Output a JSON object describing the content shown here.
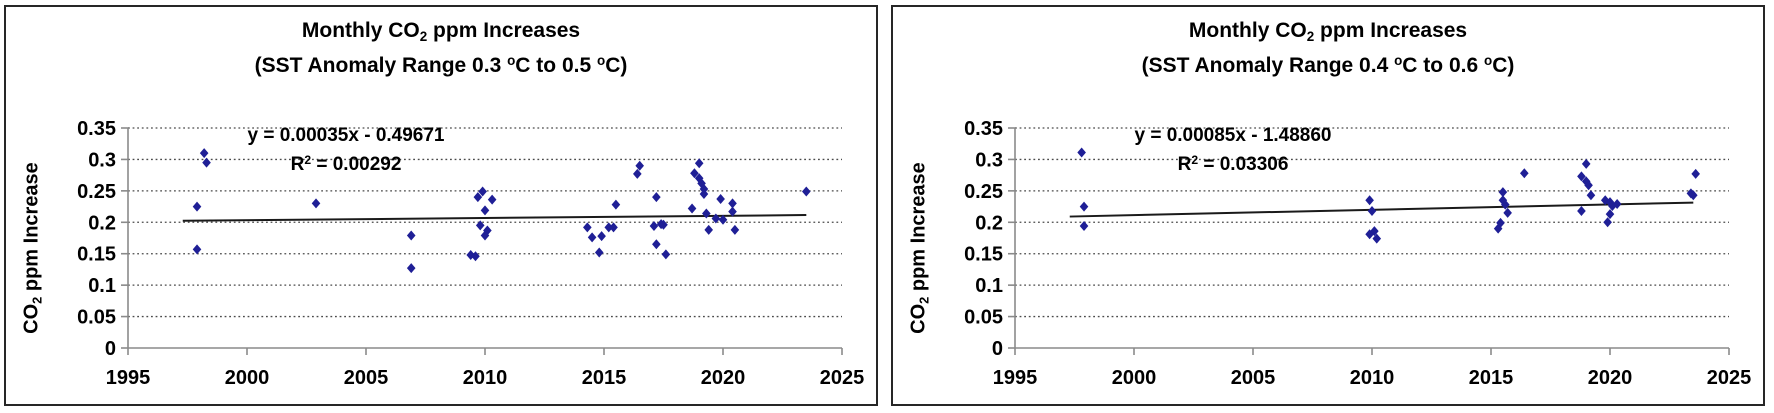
{
  "style": {
    "marker_color": "#1f1f96",
    "trend_color": "#1a1a1a",
    "grid_color": "#4a4a4a",
    "axis_color": "#8a8a8a",
    "border_color": "#262626",
    "background": "#ffffff"
  },
  "chart_data": [
    {
      "type": "scatter",
      "title": {
        "pre": "Monthly CO",
        "sub": "2",
        "post": " ppm Increases"
      },
      "subtitle": {
        "pre": "(SST Anomaly Range 0.3 ",
        "sup1": "o",
        "mid": "C to 0.5 ",
        "sup2": "o",
        "post": "C)"
      },
      "ylabel": {
        "pre": "CO",
        "sub": "2",
        "post": " ppm Increase"
      },
      "equation": "y = 0.00035x - 0.49671",
      "r_squared": {
        "pre": "R",
        "sup": "2",
        "post": " = 0.00292"
      },
      "trend": {
        "slope": 0.00035,
        "intercept": -0.49671,
        "x_start": 1997.3,
        "x_end": 2023.5
      },
      "xlim": [
        1995,
        2025
      ],
      "ylim": [
        0,
        0.35
      ],
      "x_ticks": [
        1995,
        2000,
        2005,
        2010,
        2015,
        2020,
        2025
      ],
      "y_ticks": [
        0,
        0.05,
        0.1,
        0.15,
        0.2,
        0.25,
        0.3,
        0.35
      ],
      "grid": "horizontal-dotted",
      "legend": "none",
      "marker": "diamond",
      "points": [
        [
          1997.9,
          0.157
        ],
        [
          1997.9,
          0.225
        ],
        [
          1998.2,
          0.31
        ],
        [
          1998.3,
          0.295
        ],
        [
          2002.9,
          0.23
        ],
        [
          2006.9,
          0.179
        ],
        [
          2006.9,
          0.127
        ],
        [
          2009.4,
          0.148
        ],
        [
          2009.6,
          0.146
        ],
        [
          2009.7,
          0.24
        ],
        [
          2009.9,
          0.249
        ],
        [
          2010.0,
          0.219
        ],
        [
          2010.3,
          0.236
        ],
        [
          2009.8,
          0.195
        ],
        [
          2010.1,
          0.187
        ],
        [
          2010.0,
          0.179
        ],
        [
          2014.3,
          0.192
        ],
        [
          2014.5,
          0.176
        ],
        [
          2014.9,
          0.178
        ],
        [
          2014.8,
          0.152
        ],
        [
          2015.2,
          0.192
        ],
        [
          2015.4,
          0.192
        ],
        [
          2015.5,
          0.228
        ],
        [
          2016.4,
          0.277
        ],
        [
          2016.5,
          0.29
        ],
        [
          2017.2,
          0.24
        ],
        [
          2017.1,
          0.194
        ],
        [
          2017.4,
          0.197
        ],
        [
          2017.5,
          0.196
        ],
        [
          2017.2,
          0.165
        ],
        [
          2017.6,
          0.149
        ],
        [
          2018.7,
          0.222
        ],
        [
          2018.8,
          0.278
        ],
        [
          2019.0,
          0.294
        ],
        [
          2019.0,
          0.27
        ],
        [
          2019.1,
          0.262
        ],
        [
          2019.2,
          0.253
        ],
        [
          2019.2,
          0.245
        ],
        [
          2019.9,
          0.237
        ],
        [
          2019.3,
          0.214
        ],
        [
          2019.7,
          0.206
        ],
        [
          2020.0,
          0.204
        ],
        [
          2019.4,
          0.188
        ],
        [
          2020.4,
          0.23
        ],
        [
          2020.4,
          0.217
        ],
        [
          2020.5,
          0.188
        ],
        [
          2023.5,
          0.249
        ]
      ]
    },
    {
      "type": "scatter",
      "title": {
        "pre": "Monthly CO",
        "sub": "2",
        "post": " ppm Increases"
      },
      "subtitle": {
        "pre": "(SST Anomaly Range 0.4 ",
        "sup1": "o",
        "mid": "C to 0.6 ",
        "sup2": "o",
        "post": "C)"
      },
      "ylabel": {
        "pre": "CO",
        "sub": "2",
        "post": " ppm Increase"
      },
      "equation": "y = 0.00085x - 1.48860",
      "r_squared": {
        "pre": "R",
        "sup": "2",
        "post": " = 0.03306"
      },
      "trend": {
        "slope": 0.00085,
        "intercept": -1.4886,
        "x_start": 1997.3,
        "x_end": 2023.5
      },
      "xlim": [
        1995,
        2025
      ],
      "ylim": [
        0,
        0.35
      ],
      "x_ticks": [
        1995,
        2000,
        2005,
        2010,
        2015,
        2020,
        2025
      ],
      "y_ticks": [
        0,
        0.05,
        0.1,
        0.15,
        0.2,
        0.25,
        0.3,
        0.35
      ],
      "grid": "horizontal-dotted",
      "legend": "none",
      "marker": "diamond",
      "points": [
        [
          1997.8,
          0.311
        ],
        [
          1997.9,
          0.225
        ],
        [
          1997.9,
          0.194
        ],
        [
          2009.9,
          0.235
        ],
        [
          2010.0,
          0.218
        ],
        [
          2009.9,
          0.181
        ],
        [
          2010.1,
          0.186
        ],
        [
          2010.2,
          0.174
        ],
        [
          2015.3,
          0.19
        ],
        [
          2015.4,
          0.199
        ],
        [
          2015.5,
          0.235
        ],
        [
          2015.5,
          0.248
        ],
        [
          2015.6,
          0.228
        ],
        [
          2015.7,
          0.215
        ],
        [
          2016.4,
          0.278
        ],
        [
          2018.8,
          0.273
        ],
        [
          2018.8,
          0.218
        ],
        [
          2019.0,
          0.293
        ],
        [
          2019.0,
          0.265
        ],
        [
          2019.1,
          0.259
        ],
        [
          2019.2,
          0.243
        ],
        [
          2019.8,
          0.235
        ],
        [
          2019.9,
          0.2
        ],
        [
          2020.0,
          0.232
        ],
        [
          2020.0,
          0.213
        ],
        [
          2020.1,
          0.226
        ],
        [
          2020.3,
          0.229
        ],
        [
          2023.4,
          0.246
        ],
        [
          2023.5,
          0.243
        ],
        [
          2023.6,
          0.277
        ]
      ]
    }
  ]
}
